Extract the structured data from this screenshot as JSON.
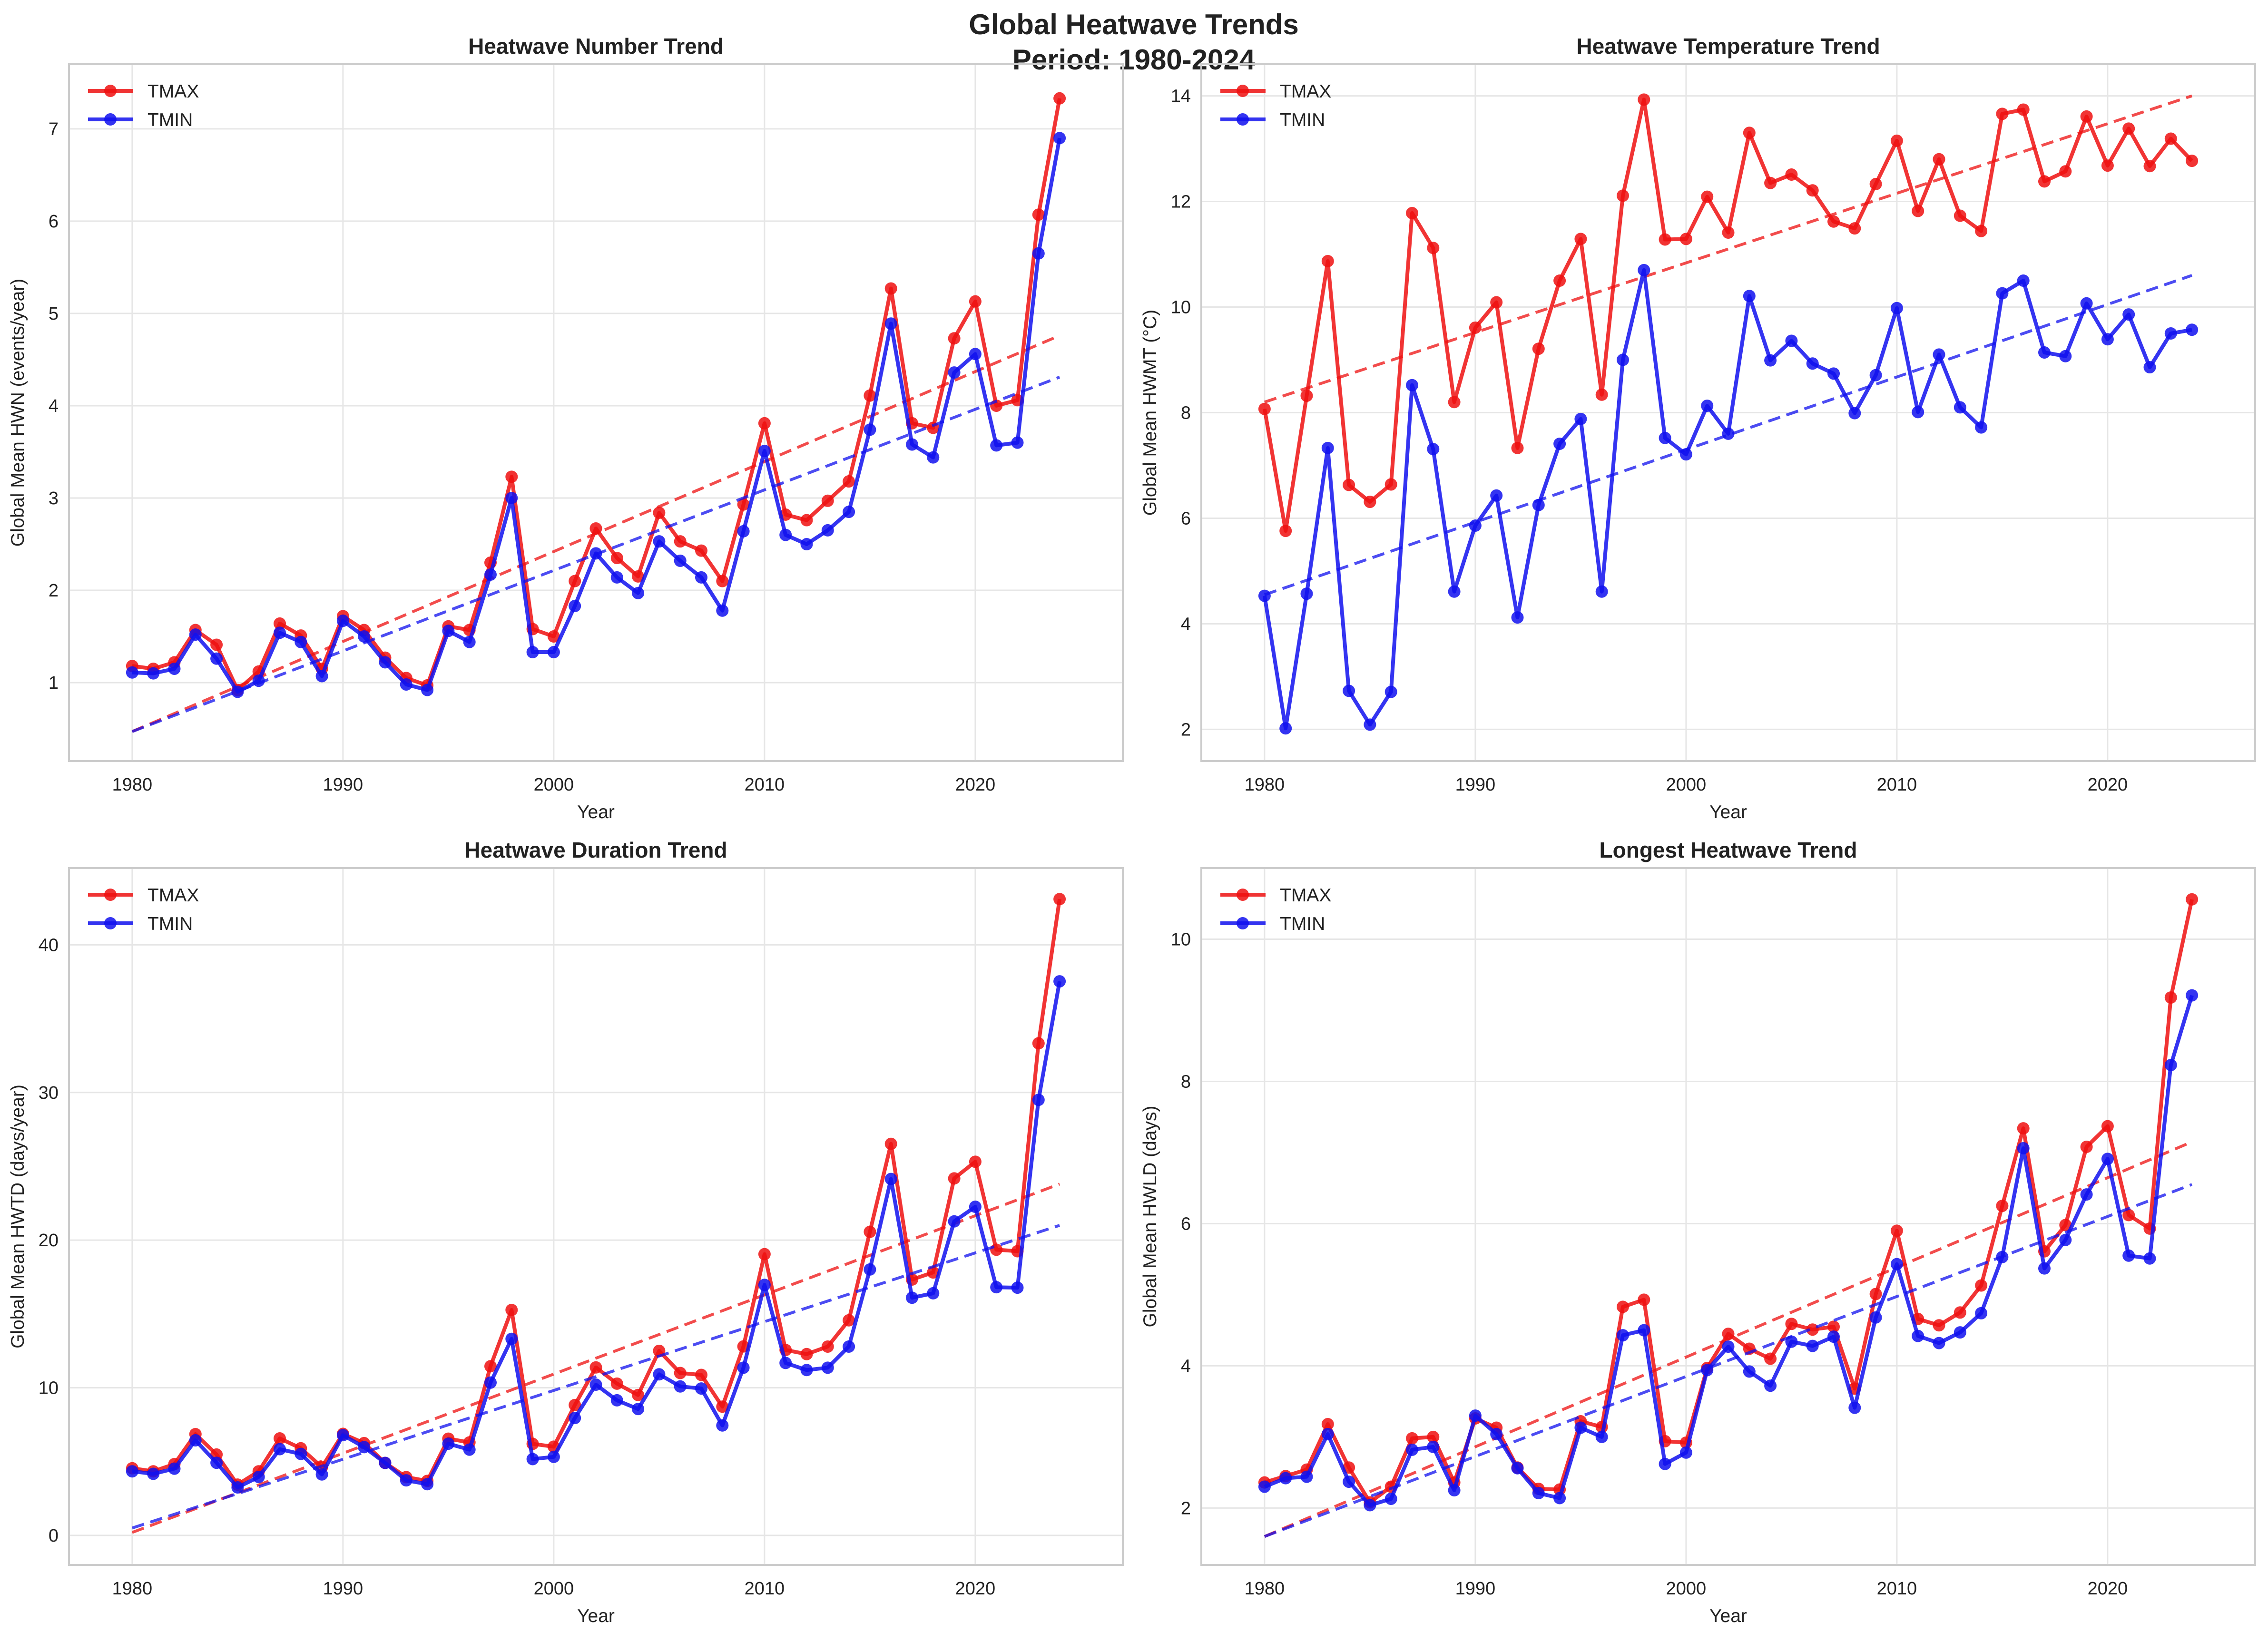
{
  "suptitle": [
    "Global Heatwave Trends",
    "Period: 1980-2024"
  ],
  "colors": {
    "TMAX": "#ee1111",
    "TMIN": "#1111ee",
    "grid": "#e6e6e6",
    "spine": "#cccccc"
  },
  "chart_data": [
    {
      "type": "line",
      "title": "Heatwave Number Trend",
      "xlabel": "Year",
      "ylabel": "Global Mean HWN (events/year)",
      "xlim": [
        1977,
        2027
      ],
      "ylim": [
        0.15,
        7.7
      ],
      "xticks": [
        1980,
        1990,
        2000,
        2010,
        2020
      ],
      "yticks": [
        1,
        2,
        3,
        4,
        5,
        6,
        7
      ],
      "grid": true,
      "legend": "top-left",
      "x_start": 1980,
      "series": [
        {
          "name": "TMAX",
          "color": "#ee1111",
          "values": [
            1.18,
            1.15,
            1.22,
            1.57,
            1.41,
            0.92,
            1.12,
            1.64,
            1.51,
            1.15,
            1.72,
            1.57,
            1.27,
            1.05,
            0.97,
            1.61,
            1.57,
            2.3,
            3.23,
            1.58,
            1.5,
            2.1,
            2.67,
            2.35,
            2.15,
            2.84,
            2.53,
            2.43,
            2.1,
            2.93,
            3.81,
            2.82,
            2.76,
            2.97,
            3.18,
            4.11,
            5.27,
            3.81,
            3.76,
            4.73,
            5.13,
            4.0,
            4.06,
            6.07,
            7.33
          ],
          "trend": [
            0.47,
            4.76
          ]
        },
        {
          "name": "TMIN",
          "color": "#1111ee",
          "values": [
            1.11,
            1.1,
            1.15,
            1.52,
            1.26,
            0.9,
            1.02,
            1.54,
            1.44,
            1.07,
            1.67,
            1.5,
            1.22,
            0.98,
            0.92,
            1.56,
            1.44,
            2.17,
            3.0,
            1.33,
            1.33,
            1.83,
            2.4,
            2.14,
            1.97,
            2.53,
            2.32,
            2.14,
            1.78,
            2.64,
            3.51,
            2.6,
            2.5,
            2.65,
            2.85,
            3.74,
            4.89,
            3.58,
            3.44,
            4.36,
            4.56,
            3.57,
            3.6,
            5.65,
            6.9
          ],
          "trend": [
            0.47,
            4.31
          ]
        }
      ]
    },
    {
      "type": "line",
      "title": "Heatwave Temperature Trend",
      "xlabel": "Year",
      "ylabel": "Global Mean HWMT (°C)",
      "xlim": [
        1977,
        2027
      ],
      "ylim": [
        1.4,
        14.6
      ],
      "xticks": [
        1980,
        1990,
        2000,
        2010,
        2020
      ],
      "yticks": [
        2,
        4,
        6,
        8,
        10,
        12,
        14
      ],
      "grid": true,
      "legend": "top-left",
      "x_start": 1980,
      "series": [
        {
          "name": "TMAX",
          "color": "#ee1111",
          "values": [
            8.07,
            5.76,
            8.32,
            10.87,
            6.63,
            6.31,
            6.64,
            11.78,
            11.12,
            8.2,
            9.61,
            10.09,
            7.33,
            9.21,
            10.5,
            11.29,
            8.34,
            12.11,
            13.93,
            11.28,
            11.29,
            12.09,
            11.41,
            13.3,
            12.35,
            12.51,
            12.21,
            11.62,
            11.49,
            12.33,
            13.15,
            11.82,
            12.8,
            11.73,
            11.44,
            13.66,
            13.74,
            12.38,
            12.57,
            13.61,
            12.68,
            13.38,
            12.67,
            13.19,
            12.77
          ],
          "trend": [
            8.2,
            14.0
          ]
        },
        {
          "name": "TMIN",
          "color": "#1111ee",
          "values": [
            4.53,
            2.02,
            4.57,
            7.33,
            2.73,
            2.09,
            2.71,
            8.52,
            7.31,
            4.61,
            5.86,
            6.43,
            4.12,
            6.25,
            7.41,
            7.88,
            4.61,
            9.0,
            10.7,
            7.52,
            7.21,
            8.13,
            7.6,
            10.21,
            8.99,
            9.36,
            8.93,
            8.74,
            7.99,
            8.71,
            9.98,
            8.01,
            9.1,
            8.1,
            7.72,
            10.26,
            10.5,
            9.14,
            9.07,
            10.07,
            9.39,
            9.86,
            8.86,
            9.5,
            9.57
          ],
          "trend": [
            4.55,
            10.6
          ]
        }
      ]
    },
    {
      "type": "line",
      "title": "Heatwave Duration Trend",
      "xlabel": "Year",
      "ylabel": "Global Mean HWTD (days/year)",
      "xlim": [
        1977,
        2027
      ],
      "ylim": [
        -2.0,
        45.2
      ],
      "xticks": [
        1980,
        1990,
        2000,
        2010,
        2020
      ],
      "yticks": [
        0,
        10,
        20,
        30,
        40
      ],
      "grid": true,
      "legend": "top-left",
      "x_start": 1980,
      "series": [
        {
          "name": "TMAX",
          "color": "#ee1111",
          "values": [
            4.55,
            4.34,
            4.83,
            6.86,
            5.48,
            3.44,
            4.34,
            6.57,
            5.9,
            4.63,
            6.88,
            6.25,
            4.91,
            3.95,
            3.69,
            6.55,
            6.3,
            11.46,
            15.27,
            6.2,
            6.01,
            8.83,
            11.38,
            10.28,
            9.51,
            12.5,
            11.0,
            10.87,
            8.72,
            12.8,
            19.05,
            12.56,
            12.28,
            12.79,
            14.57,
            20.56,
            26.52,
            17.33,
            17.81,
            24.18,
            25.31,
            19.35,
            19.25,
            33.33,
            43.1
          ],
          "trend": [
            0.2,
            23.8
          ]
        },
        {
          "name": "TMIN",
          "color": "#1111ee",
          "values": [
            4.34,
            4.17,
            4.52,
            6.44,
            4.92,
            3.25,
            3.96,
            5.84,
            5.52,
            4.13,
            6.79,
            5.98,
            4.91,
            3.73,
            3.47,
            6.21,
            5.81,
            10.35,
            13.31,
            5.17,
            5.32,
            7.95,
            10.21,
            9.15,
            8.56,
            10.91,
            10.09,
            9.95,
            7.45,
            11.36,
            16.97,
            11.68,
            11.2,
            11.36,
            12.79,
            18.01,
            24.14,
            16.1,
            16.4,
            21.27,
            22.26,
            16.81,
            16.78,
            29.5,
            37.53
          ],
          "trend": [
            0.5,
            21.0
          ]
        }
      ]
    },
    {
      "type": "line",
      "title": "Longest Heatwave Trend",
      "xlabel": "Year",
      "ylabel": "Global Mean HWLD (days)",
      "xlim": [
        1977,
        2027
      ],
      "ylim": [
        1.2,
        11.0
      ],
      "xticks": [
        1980,
        1990,
        2000,
        2010,
        2020
      ],
      "yticks": [
        2,
        4,
        6,
        8,
        10
      ],
      "grid": true,
      "legend": "top-left",
      "x_start": 1980,
      "series": [
        {
          "name": "TMAX",
          "color": "#ee1111",
          "values": [
            2.36,
            2.45,
            2.54,
            3.18,
            2.57,
            2.08,
            2.3,
            2.98,
            3.0,
            2.36,
            3.26,
            3.13,
            2.57,
            2.27,
            2.26,
            3.22,
            3.14,
            4.83,
            4.93,
            2.94,
            2.92,
            3.97,
            4.45,
            4.24,
            4.1,
            4.59,
            4.51,
            4.55,
            3.68,
            5.01,
            5.9,
            4.66,
            4.57,
            4.75,
            5.13,
            6.25,
            7.34,
            5.61,
            5.98,
            7.08,
            7.37,
            6.12,
            5.93,
            9.18,
            10.56
          ],
          "trend": [
            1.6,
            7.15
          ]
        },
        {
          "name": "TMIN",
          "color": "#1111ee",
          "values": [
            2.3,
            2.42,
            2.44,
            3.04,
            2.37,
            2.04,
            2.13,
            2.82,
            2.86,
            2.25,
            3.3,
            3.04,
            2.56,
            2.21,
            2.14,
            3.13,
            3.0,
            4.43,
            4.5,
            2.62,
            2.78,
            3.94,
            4.27,
            3.92,
            3.72,
            4.34,
            4.28,
            4.41,
            3.41,
            4.68,
            5.43,
            4.42,
            4.32,
            4.47,
            4.74,
            5.53,
            7.06,
            5.37,
            5.77,
            6.41,
            6.91,
            5.55,
            5.51,
            8.23,
            9.21
          ],
          "trend": [
            1.6,
            6.55
          ]
        }
      ]
    }
  ]
}
